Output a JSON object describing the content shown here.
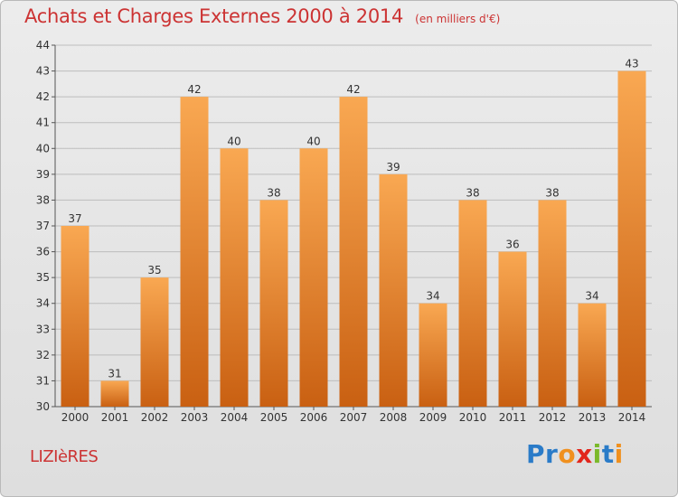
{
  "header": {
    "title": "Achats et Charges Externes 2000 à 2014",
    "subtitle": "(en milliers d'€)"
  },
  "footer": {
    "commune": "LIZIèRES",
    "logo_text": "Proxiti",
    "logo_letter_colors": [
      "#2a7bc8",
      "#2a7bc8",
      "#f0901e",
      "#e2261c",
      "#7bb92a",
      "#2a7bc8",
      "#f0901e"
    ]
  },
  "colors": {
    "bar_top": "#f9a852",
    "bar_bottom": "#c96012",
    "title": "#cc3333",
    "grid": "#bdbdbd"
  },
  "chart_data": {
    "type": "bar",
    "categories": [
      "2000",
      "2001",
      "2002",
      "2003",
      "2004",
      "2005",
      "2006",
      "2007",
      "2008",
      "2009",
      "2010",
      "2011",
      "2012",
      "2013",
      "2014"
    ],
    "values": [
      37,
      31,
      35,
      42,
      40,
      38,
      40,
      42,
      39,
      34,
      38,
      36,
      38,
      34,
      43
    ],
    "ylim": [
      30,
      44
    ],
    "yticks": [
      30,
      31,
      32,
      33,
      34,
      35,
      36,
      37,
      38,
      39,
      40,
      41,
      42,
      43,
      44
    ],
    "grid": true,
    "legend": "none"
  }
}
